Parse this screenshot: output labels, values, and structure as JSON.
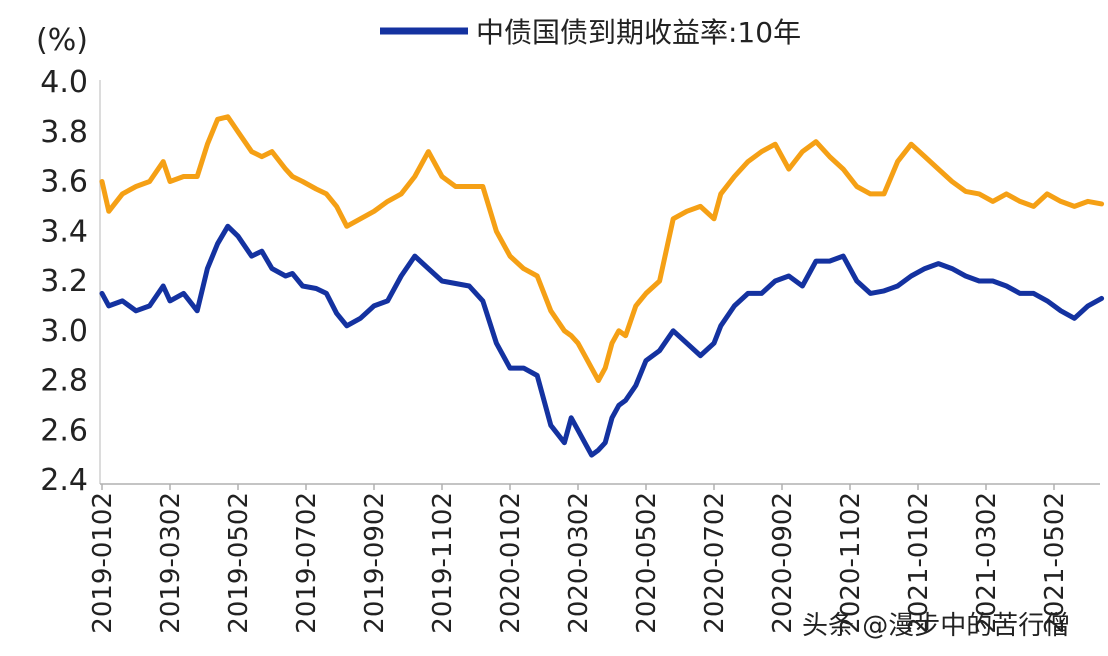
{
  "chart_data": {
    "type": "line",
    "y_unit": "(%)",
    "ylim": [
      2.4,
      4.0
    ],
    "yticks": [
      "4.0",
      "3.8",
      "3.6",
      "3.4",
      "3.2",
      "3.0",
      "2.8",
      "2.6",
      "2.4"
    ],
    "x_tick_labels": [
      "2019-0102",
      "2019-0302",
      "2019-0502",
      "2019-0702",
      "2019-0902",
      "2019-1102",
      "2020-0102",
      "2020-0302",
      "2020-0502",
      "2020-0702",
      "2020-0902",
      "2020-1102",
      "2021-0102",
      "2021-0302",
      "2021-0502"
    ],
    "grid": false,
    "legend_placement": "top-center",
    "series": [
      {
        "name": "中债国债到期收益率:10年",
        "color": "#1432a0",
        "x": [
          0,
          0.1,
          0.3,
          0.5,
          0.7,
          0.9,
          1.0,
          1.2,
          1.4,
          1.55,
          1.7,
          1.85,
          2.0,
          2.2,
          2.35,
          2.5,
          2.7,
          2.8,
          2.95,
          3.15,
          3.3,
          3.45,
          3.6,
          3.8,
          4.0,
          4.2,
          4.4,
          4.6,
          4.8,
          5.0,
          5.2,
          5.4,
          5.6,
          5.8,
          6.0,
          6.2,
          6.4,
          6.6,
          6.8,
          6.9,
          7.0,
          7.1,
          7.2,
          7.3,
          7.4,
          7.5,
          7.6,
          7.7,
          7.85,
          8.0,
          8.2,
          8.4,
          8.6,
          8.8,
          9.0,
          9.1,
          9.3,
          9.5,
          9.7,
          9.9,
          10.1,
          10.3,
          10.5,
          10.7,
          10.9,
          11.1,
          11.3,
          11.5,
          11.7,
          11.9,
          12.1,
          12.3,
          12.5,
          12.7,
          12.9,
          13.1,
          13.3,
          13.5,
          13.7,
          13.9,
          14.1,
          14.3,
          14.5,
          14.7
        ],
        "values": [
          3.15,
          3.1,
          3.12,
          3.08,
          3.1,
          3.18,
          3.12,
          3.15,
          3.08,
          3.25,
          3.35,
          3.42,
          3.38,
          3.3,
          3.32,
          3.25,
          3.22,
          3.23,
          3.18,
          3.17,
          3.15,
          3.07,
          3.02,
          3.05,
          3.1,
          3.12,
          3.22,
          3.3,
          3.25,
          3.2,
          3.19,
          3.18,
          3.12,
          2.95,
          2.85,
          2.85,
          2.82,
          2.62,
          2.55,
          2.65,
          2.6,
          2.55,
          2.5,
          2.52,
          2.55,
          2.65,
          2.7,
          2.72,
          2.78,
          2.88,
          2.92,
          3.0,
          2.95,
          2.9,
          2.95,
          3.02,
          3.1,
          3.15,
          3.15,
          3.2,
          3.22,
          3.18,
          3.28,
          3.28,
          3.3,
          3.2,
          3.15,
          3.16,
          3.18,
          3.22,
          3.25,
          3.27,
          3.25,
          3.22,
          3.2,
          3.2,
          3.18,
          3.15,
          3.15,
          3.12,
          3.08,
          3.05,
          3.1,
          3.13
        ]
      },
      {
        "name": "",
        "color": "#f5a015",
        "x": [
          0,
          0.1,
          0.3,
          0.5,
          0.7,
          0.9,
          1.0,
          1.2,
          1.4,
          1.55,
          1.7,
          1.85,
          2.0,
          2.2,
          2.35,
          2.5,
          2.7,
          2.8,
          2.95,
          3.15,
          3.3,
          3.45,
          3.6,
          3.8,
          4.0,
          4.2,
          4.4,
          4.6,
          4.8,
          5.0,
          5.2,
          5.4,
          5.6,
          5.8,
          6.0,
          6.2,
          6.4,
          6.6,
          6.8,
          6.9,
          7.0,
          7.1,
          7.2,
          7.3,
          7.4,
          7.5,
          7.6,
          7.7,
          7.85,
          8.0,
          8.2,
          8.4,
          8.6,
          8.8,
          9.0,
          9.1,
          9.3,
          9.5,
          9.7,
          9.9,
          10.1,
          10.3,
          10.5,
          10.7,
          10.9,
          11.1,
          11.3,
          11.5,
          11.7,
          11.9,
          12.1,
          12.3,
          12.5,
          12.7,
          12.9,
          13.1,
          13.3,
          13.5,
          13.7,
          13.9,
          14.1,
          14.3,
          14.5,
          14.7
        ],
        "values": [
          3.6,
          3.48,
          3.55,
          3.58,
          3.6,
          3.68,
          3.6,
          3.62,
          3.62,
          3.75,
          3.85,
          3.86,
          3.8,
          3.72,
          3.7,
          3.72,
          3.65,
          3.62,
          3.6,
          3.57,
          3.55,
          3.5,
          3.42,
          3.45,
          3.48,
          3.52,
          3.55,
          3.62,
          3.72,
          3.62,
          3.58,
          3.58,
          3.58,
          3.4,
          3.3,
          3.25,
          3.22,
          3.08,
          3.0,
          2.98,
          2.95,
          2.9,
          2.85,
          2.8,
          2.85,
          2.95,
          3.0,
          2.98,
          3.1,
          3.15,
          3.2,
          3.45,
          3.48,
          3.5,
          3.45,
          3.55,
          3.62,
          3.68,
          3.72,
          3.75,
          3.65,
          3.72,
          3.76,
          3.7,
          3.65,
          3.58,
          3.55,
          3.55,
          3.68,
          3.75,
          3.7,
          3.65,
          3.6,
          3.56,
          3.55,
          3.52,
          3.55,
          3.52,
          3.5,
          3.55,
          3.52,
          3.5,
          3.52,
          3.51
        ]
      }
    ]
  },
  "watermark": "头条 @漫步中的苦行僧"
}
